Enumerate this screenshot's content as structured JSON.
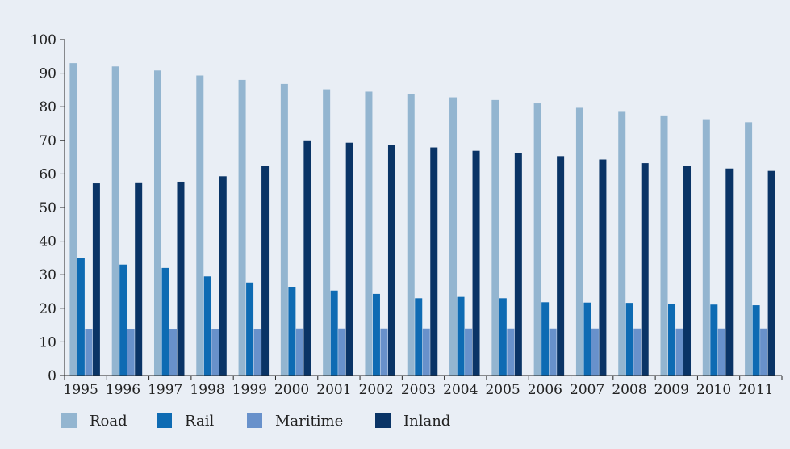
{
  "chart_data": {
    "type": "bar",
    "title": "",
    "xlabel": "",
    "ylabel": "",
    "ylim": [
      0,
      100
    ],
    "yticks": [
      0,
      10,
      20,
      30,
      40,
      50,
      60,
      70,
      80,
      90,
      100
    ],
    "grid": false,
    "legend_position": "bottom-left",
    "categories": [
      "1995",
      "1996",
      "1997",
      "1998",
      "1999",
      "2000",
      "2001",
      "2002",
      "2003",
      "2004",
      "2005",
      "2006",
      "2007",
      "2008",
      "2009",
      "2010",
      "2011"
    ],
    "series": [
      {
        "name": "Road",
        "color": "#93b5d0",
        "values": [
          93,
          92,
          90.8,
          89.3,
          88,
          86.8,
          85.2,
          84.5,
          83.7,
          82.8,
          82,
          81,
          79.7,
          78.5,
          77.2,
          76.3,
          75.4
        ]
      },
      {
        "name": "Rail",
        "color": "#0e6bb3",
        "values": [
          35,
          33,
          32,
          29.5,
          27.7,
          26.4,
          25.3,
          24.3,
          23,
          23.4,
          23,
          21.8,
          21.7,
          21.6,
          21.3,
          21.1,
          20.9
        ]
      },
      {
        "name": "Maritime",
        "color": "#6891cb",
        "values": [
          13.7,
          13.7,
          13.7,
          13.7,
          13.7,
          14,
          14,
          14,
          14,
          14,
          14,
          14,
          14,
          14,
          14,
          14,
          14
        ]
      },
      {
        "name": "Inland",
        "color": "#0a3466",
        "values": [
          57.2,
          57.5,
          57.7,
          59.3,
          62.5,
          70,
          69.3,
          68.6,
          67.9,
          66.9,
          66.2,
          65.3,
          64.3,
          63.2,
          62.3,
          61.6,
          60.9
        ]
      }
    ]
  }
}
